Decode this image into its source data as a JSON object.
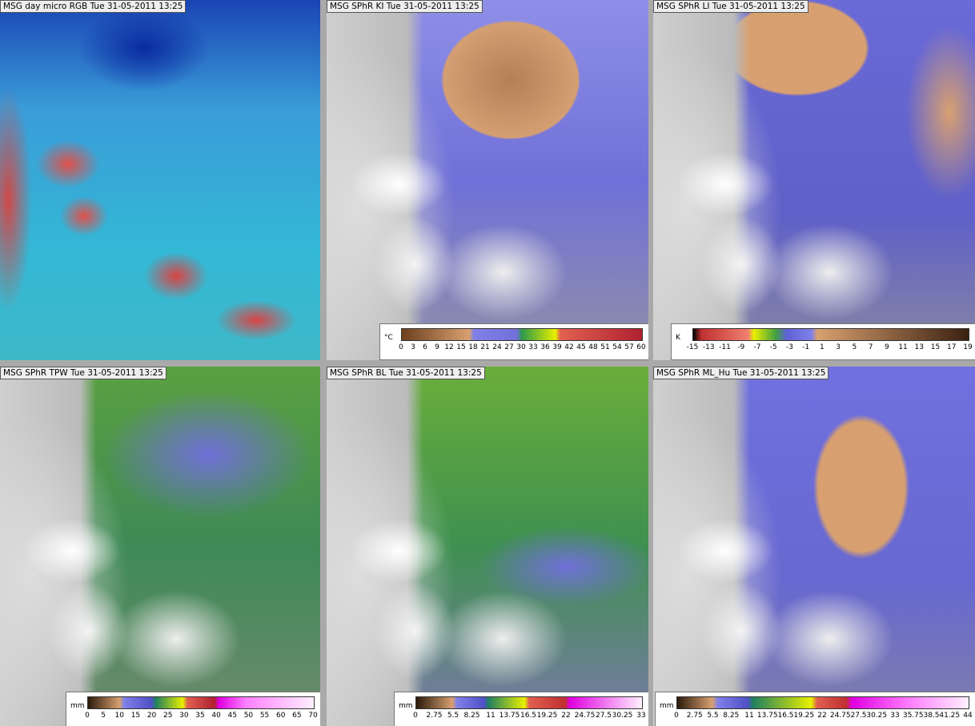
{
  "panels": [
    {
      "title": "MSG day micro RGB Tue 31-05-2011 13:25"
    },
    {
      "title": "MSG SPhR KI Tue 31-05-2011 13:25",
      "legend": {
        "unit": "°C",
        "ticks": [
          "0",
          "3",
          "6",
          "9",
          "12",
          "15",
          "18",
          "21",
          "24",
          "27",
          "30",
          "33",
          "36",
          "39",
          "42",
          "45",
          "48",
          "51",
          "54",
          "57",
          "60"
        ]
      }
    },
    {
      "title": "MSG SPhR LI Tue 31-05-2011 13:25",
      "legend": {
        "unit": "K",
        "ticks": [
          "-15",
          "-13",
          "-11",
          "-9",
          "-7",
          "-5",
          "-3",
          "-1",
          "1",
          "3",
          "5",
          "7",
          "9",
          "11",
          "13",
          "15",
          "17",
          "19"
        ]
      }
    },
    {
      "title": "MSG SPhR TPW Tue 31-05-2011 13:25",
      "legend": {
        "unit": "mm",
        "ticks": [
          "0",
          "5",
          "10",
          "15",
          "20",
          "25",
          "30",
          "35",
          "40",
          "45",
          "50",
          "55",
          "60",
          "65",
          "70"
        ]
      }
    },
    {
      "title": "MSG SPhR BL Tue 31-05-2011 13:25",
      "legend": {
        "unit": "mm",
        "ticks": [
          "0",
          "2.75",
          "5.5",
          "8.25",
          "11",
          "13.75",
          "16.5",
          "19.25",
          "22",
          "24.75",
          "27.5",
          "30.25",
          "33"
        ]
      }
    },
    {
      "title": "MSG SPhR ML_Hu Tue 31-05-2011 13:25",
      "legend": {
        "unit": "mm",
        "ticks": [
          "0",
          "2.75",
          "5.5",
          "8.25",
          "11",
          "13.75",
          "16.5",
          "19.25",
          "22",
          "24.75",
          "27.5",
          "30.25",
          "33",
          "35.75",
          "38.5",
          "41.25",
          "44"
        ]
      }
    }
  ]
}
